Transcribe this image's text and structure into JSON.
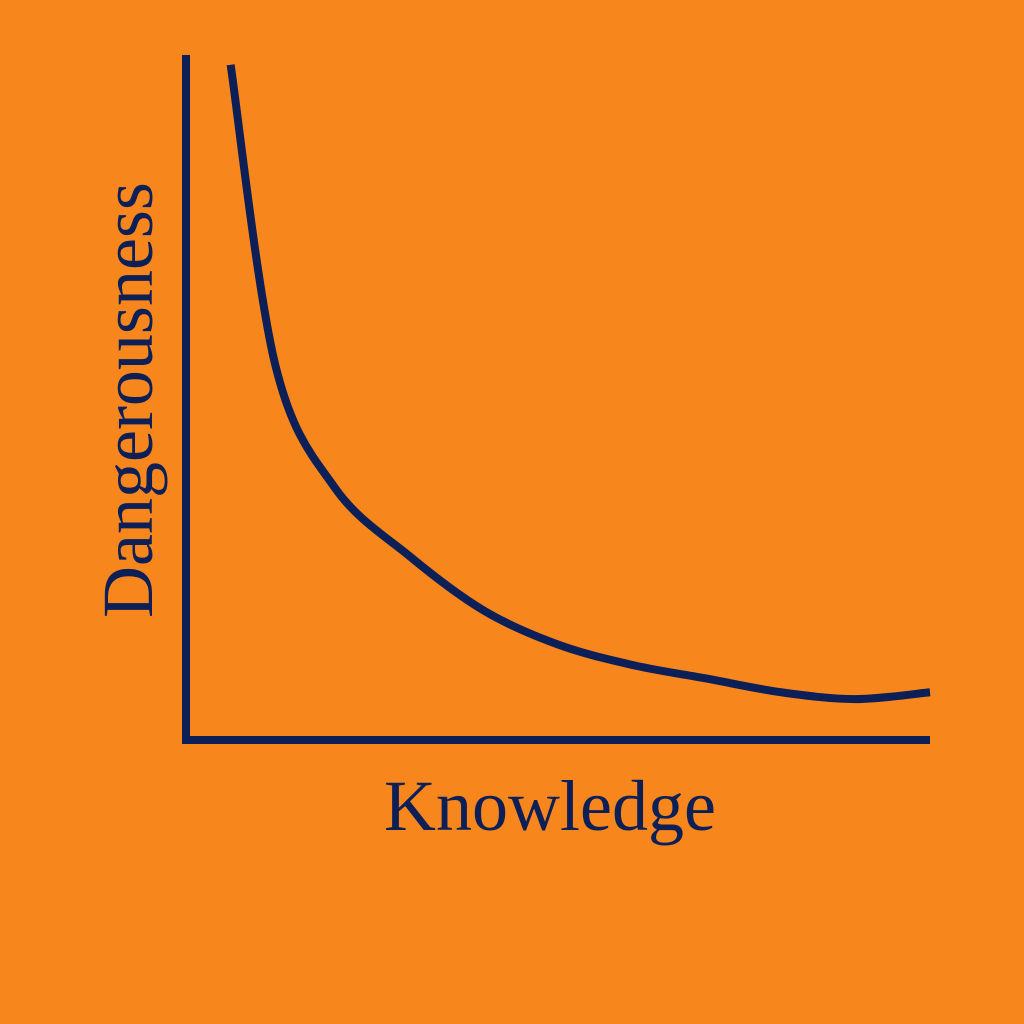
{
  "background_color": "#f7871d",
  "ink_color": "#0c1f57",
  "chart_data": {
    "type": "line",
    "title": "",
    "xlabel": "Knowledge",
    "ylabel": "Dangerousness",
    "xlim": [
      0,
      1
    ],
    "ylim": [
      0,
      1
    ],
    "grid": false,
    "legend": "none",
    "ticks": "none",
    "series": [
      {
        "x": [
          0.06,
          0.12,
          0.2,
          0.3,
          0.4,
          0.5,
          0.6,
          0.7,
          0.8,
          0.9,
          1.0
        ],
        "y": [
          0.99,
          0.55,
          0.37,
          0.27,
          0.19,
          0.14,
          0.11,
          0.09,
          0.07,
          0.06,
          0.07
        ]
      }
    ]
  }
}
